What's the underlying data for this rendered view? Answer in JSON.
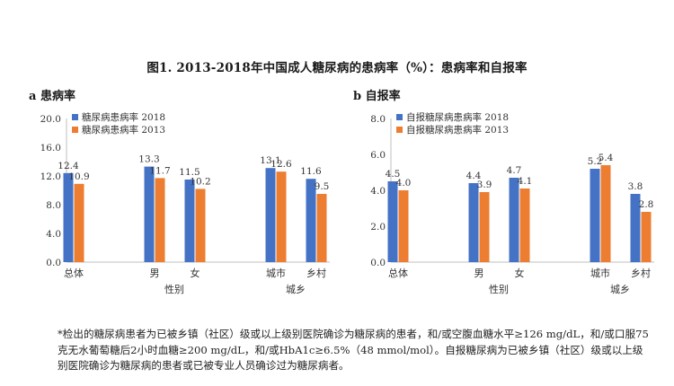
{
  "title": "图1. 2013-2018年中国成人糖尿病的患病率（%）：患病率和自报率",
  "colors": {
    "series_2018": "#4472C4",
    "series_2013": "#ED7D31"
  },
  "panels": [
    {
      "label": "a 患病率"
    },
    {
      "label": "b 自报率"
    }
  ],
  "chart_data": [
    {
      "type": "bar",
      "categories": [
        "总体",
        "男",
        "女",
        "城市",
        "乡村"
      ],
      "groups": [
        {
          "label": "性别",
          "categories": [
            "男",
            "女"
          ]
        },
        {
          "label": "城乡",
          "categories": [
            "城市",
            "乡村"
          ]
        }
      ],
      "series": [
        {
          "name": "糖尿病患病率 2018",
          "values": [
            12.4,
            13.3,
            11.5,
            13.1,
            11.6
          ]
        },
        {
          "name": "糖尿病患病率 2013",
          "values": [
            10.9,
            11.7,
            10.2,
            12.6,
            9.5
          ]
        }
      ],
      "value_labels": [
        [
          "12.4",
          "13.3",
          "11.5",
          "13.1",
          "11.6"
        ],
        [
          "10.9",
          "11.7",
          "10.2",
          "12.6",
          "9.5"
        ]
      ],
      "ylim": [
        0,
        20
      ],
      "yticks": [
        0,
        4,
        8,
        12,
        16,
        20
      ],
      "ytick_labels": [
        "0.0",
        "4.0",
        "8.0",
        "12.0",
        "16.0",
        "20.0"
      ],
      "grid": false,
      "legend": "top-left"
    },
    {
      "type": "bar",
      "categories": [
        "总体",
        "男",
        "女",
        "城市",
        "乡村"
      ],
      "groups": [
        {
          "label": "性别",
          "categories": [
            "男",
            "女"
          ]
        },
        {
          "label": "城乡",
          "categories": [
            "城市",
            "乡村"
          ]
        }
      ],
      "series": [
        {
          "name": "自报糖尿病患病率 2018",
          "values": [
            4.5,
            4.4,
            4.7,
            5.2,
            3.8
          ]
        },
        {
          "name": "自报糖尿病患病率 2013",
          "values": [
            4.0,
            3.9,
            4.1,
            5.4,
            2.8
          ]
        }
      ],
      "value_labels": [
        [
          "4.5",
          "4.4",
          "4.7",
          "5.2",
          "3.8"
        ],
        [
          "4.0",
          "3.9",
          "4.1",
          "5.4",
          "2.8"
        ]
      ],
      "ylim": [
        0,
        8
      ],
      "yticks": [
        0,
        2,
        4,
        6,
        8
      ],
      "ytick_labels": [
        "0.0",
        "2.0",
        "4.0",
        "6.0",
        "8.0"
      ],
      "grid": false,
      "legend": "top-left"
    }
  ],
  "footnote": "*检出的糖尿病患者为已被乡镇（社区）级或以上级别医院确诊为糖尿病的患者，和/或空腹血糖水平≥126 mg/dL，和/或口服75克无水葡萄糖后2小时血糖≥200 mg/dL，和/或HbA1c≥6.5%（48 mmol/mol）。自报糖尿病为已被乡镇（社区）级或以上级别医院确诊为糖尿病的患者或已被专业人员确诊过为糖尿病者。"
}
